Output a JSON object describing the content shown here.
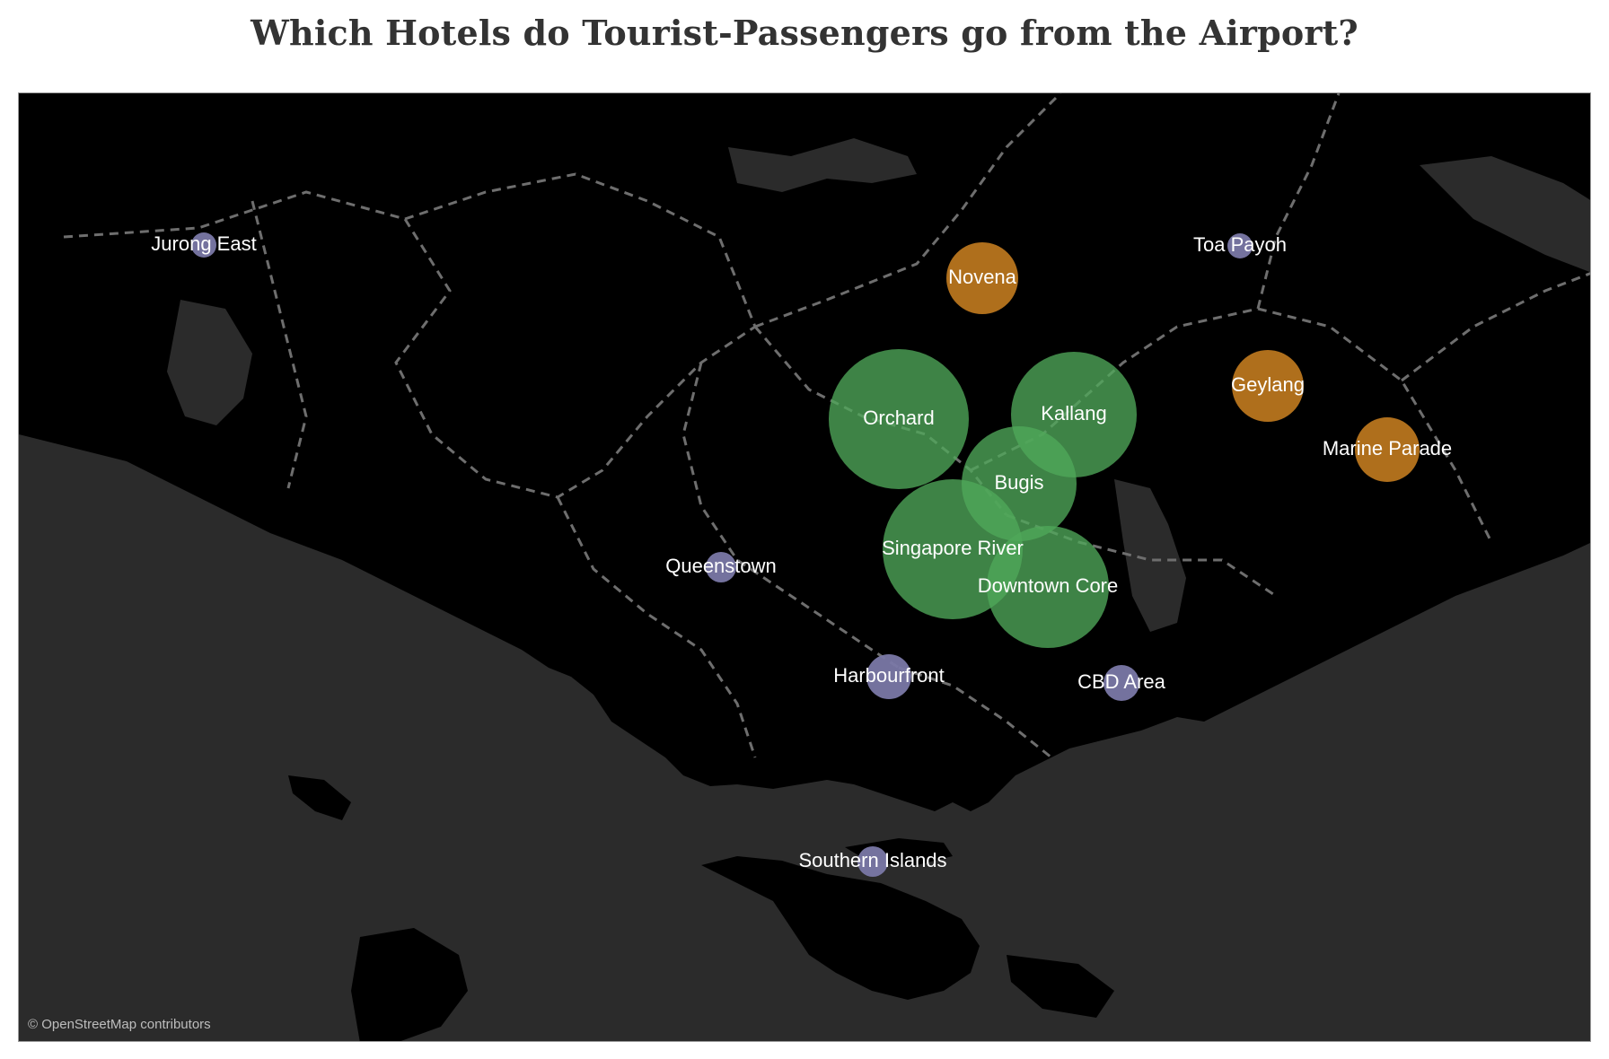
{
  "title": "Which Hotels do Tourist-Passengers go from the Airport?",
  "attribution": "© OpenStreetMap contributors",
  "colors": {
    "land": "#000000",
    "water": "#2b2b2b",
    "boundary": "#6e6e6e",
    "high": "#4fa85a",
    "medium": "#b8751e",
    "low": "#7a78a6"
  },
  "areas": [
    {
      "name": "Jurong East",
      "tier": "low",
      "label": "Jurong East"
    },
    {
      "name": "Toa Payoh",
      "tier": "low",
      "label": "Toa Payoh"
    },
    {
      "name": "Novena",
      "tier": "medium",
      "label": "Novena"
    },
    {
      "name": "Geylang",
      "tier": "medium",
      "label": "Geylang"
    },
    {
      "name": "Marine Parade",
      "tier": "medium",
      "label": "Marine Parade"
    },
    {
      "name": "Orchard",
      "tier": "high",
      "label": "Orchard"
    },
    {
      "name": "Kallang",
      "tier": "high",
      "label": "Kallang"
    },
    {
      "name": "Bugis",
      "tier": "high",
      "label": "Bugis"
    },
    {
      "name": "Singapore River",
      "tier": "high",
      "label": "Singapore River"
    },
    {
      "name": "Downtown Core",
      "tier": "high",
      "label": "Downtown Core"
    },
    {
      "name": "Queenstown",
      "tier": "low",
      "label": "Queenstown"
    },
    {
      "name": "Harbourfront",
      "tier": "low",
      "label": "Harbourfront"
    },
    {
      "name": "CBD Area",
      "tier": "low",
      "label": "CBD Area"
    },
    {
      "name": "Southern Islands",
      "tier": "low",
      "label": "Southern Islands"
    }
  ]
}
